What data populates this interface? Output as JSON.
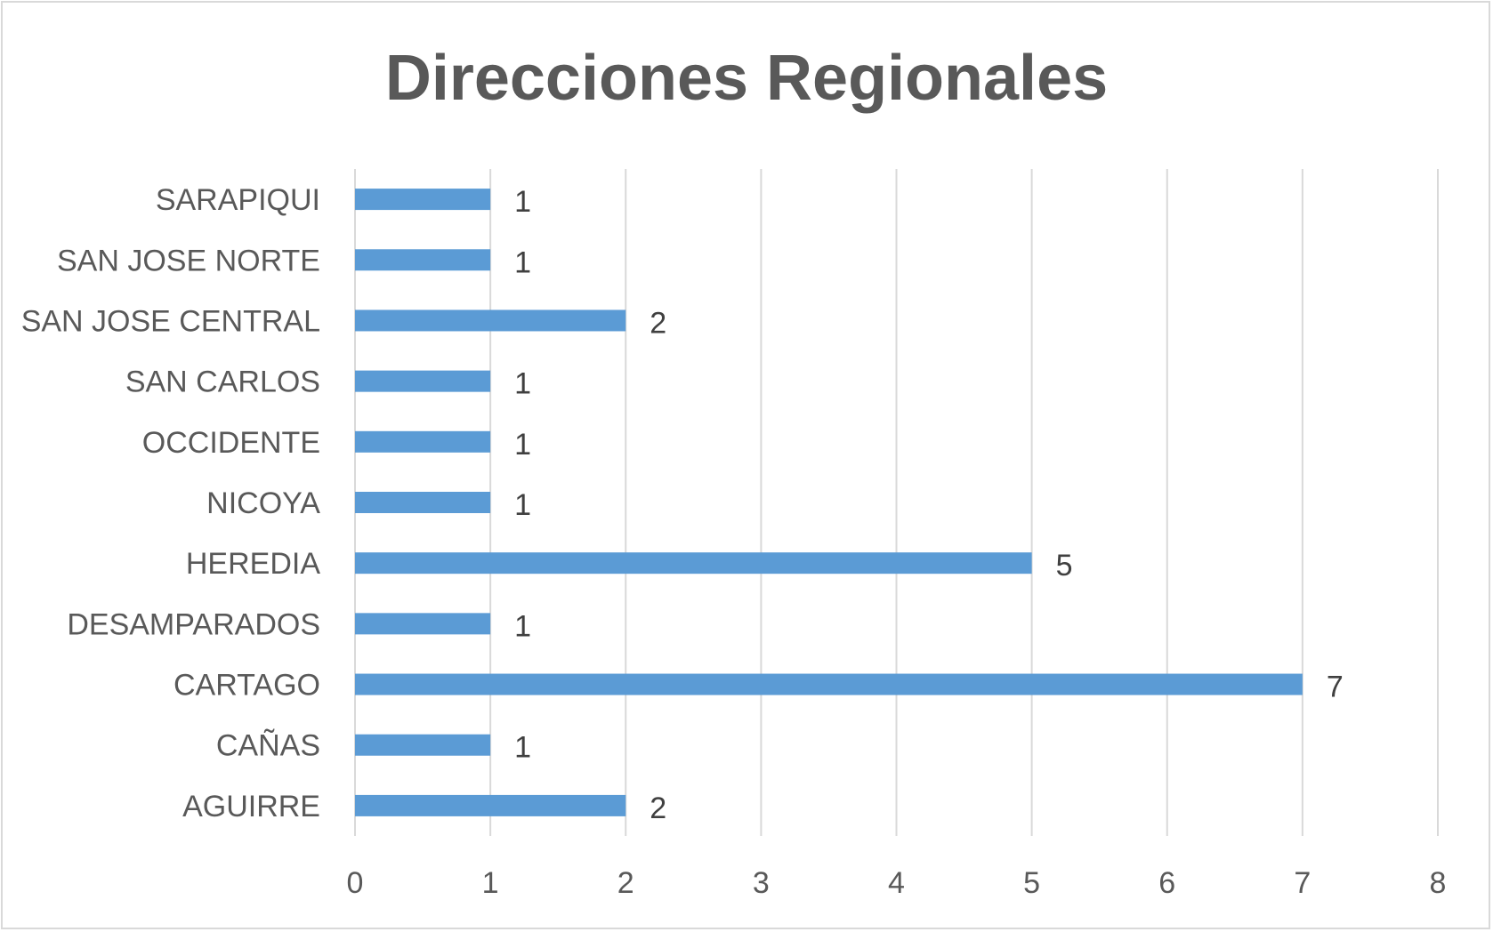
{
  "chart_data": {
    "type": "bar",
    "orientation": "horizontal",
    "title": "Direcciones Regionales",
    "categories": [
      "AGUIRRE",
      "CAÑAS",
      "CARTAGO",
      "DESAMPARADOS",
      "HEREDIA",
      "NICOYA",
      "OCCIDENTE",
      "SAN CARLOS",
      "SAN JOSE CENTRAL",
      "SAN JOSE NORTE",
      "SARAPIQUI"
    ],
    "values": [
      2,
      1,
      7,
      1,
      5,
      1,
      1,
      1,
      2,
      1,
      1
    ],
    "xlim": [
      0,
      8
    ],
    "xticks": [
      "0",
      "1",
      "2",
      "3",
      "4",
      "5",
      "6",
      "7",
      "8"
    ],
    "grid": "vertical",
    "legend": "none",
    "colors": {
      "bar": "#5b9bd5",
      "grid": "#d9d9d9",
      "text": "#595959"
    }
  }
}
